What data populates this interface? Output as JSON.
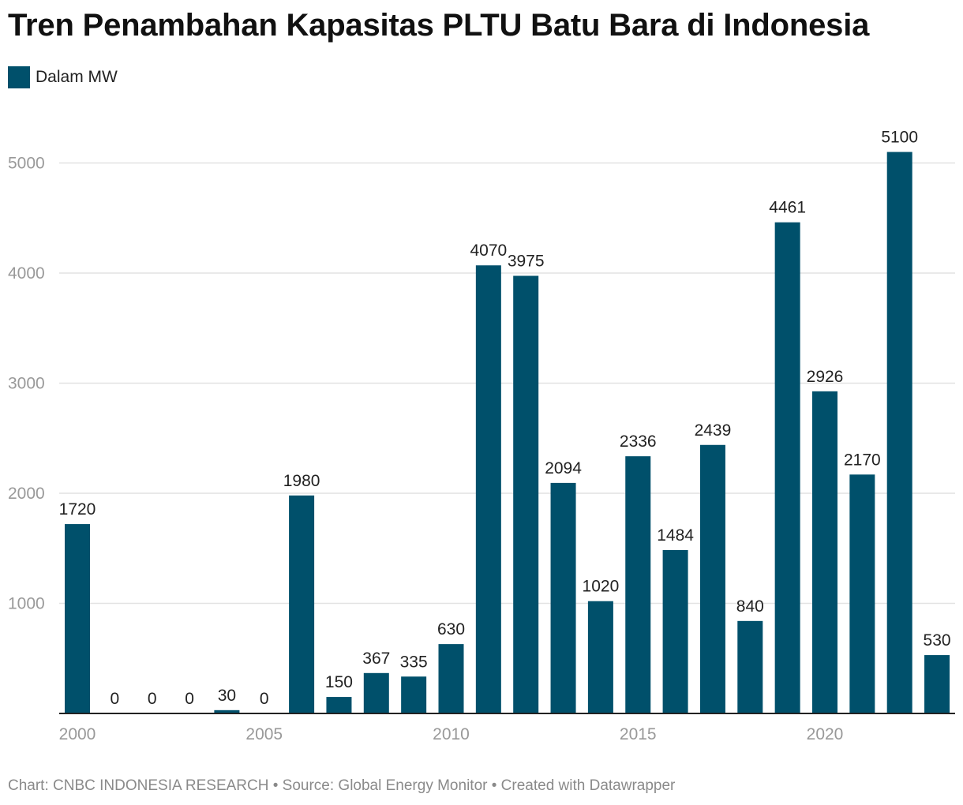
{
  "title": "Tren Penambahan Kapasitas PLTU Batu Bara di Indonesia",
  "legend_label": "Dalam MW",
  "colors": {
    "bar": "#00506b",
    "grid": "#e2e2e2",
    "axis_tick_label": "#999999",
    "data_label": "#222222"
  },
  "footer": {
    "text": "Chart: CNBC INDONESIA RESEARCH • Source: Global Energy Monitor • Created with Datawrapper"
  },
  "chart_data": {
    "type": "bar",
    "x": [
      2000,
      2001,
      2002,
      2003,
      2004,
      2005,
      2006,
      2007,
      2008,
      2009,
      2010,
      2011,
      2012,
      2013,
      2014,
      2015,
      2016,
      2017,
      2018,
      2019,
      2020,
      2021,
      2022,
      2023
    ],
    "values": [
      1720,
      0,
      0,
      0,
      30,
      0,
      1980,
      150,
      367,
      335,
      630,
      4070,
      3975,
      2094,
      1020,
      2336,
      1484,
      2439,
      840,
      4461,
      2926,
      2170,
      5100,
      530
    ],
    "series_name": "Dalam MW",
    "x_ticks": [
      "2000",
      "2005",
      "2010",
      "2015",
      "2020"
    ],
    "y_ticks": [
      "1000",
      "2000",
      "3000",
      "4000",
      "5000"
    ],
    "ylim": [
      0,
      5100
    ],
    "grid": true,
    "legend_position": "top-left"
  }
}
